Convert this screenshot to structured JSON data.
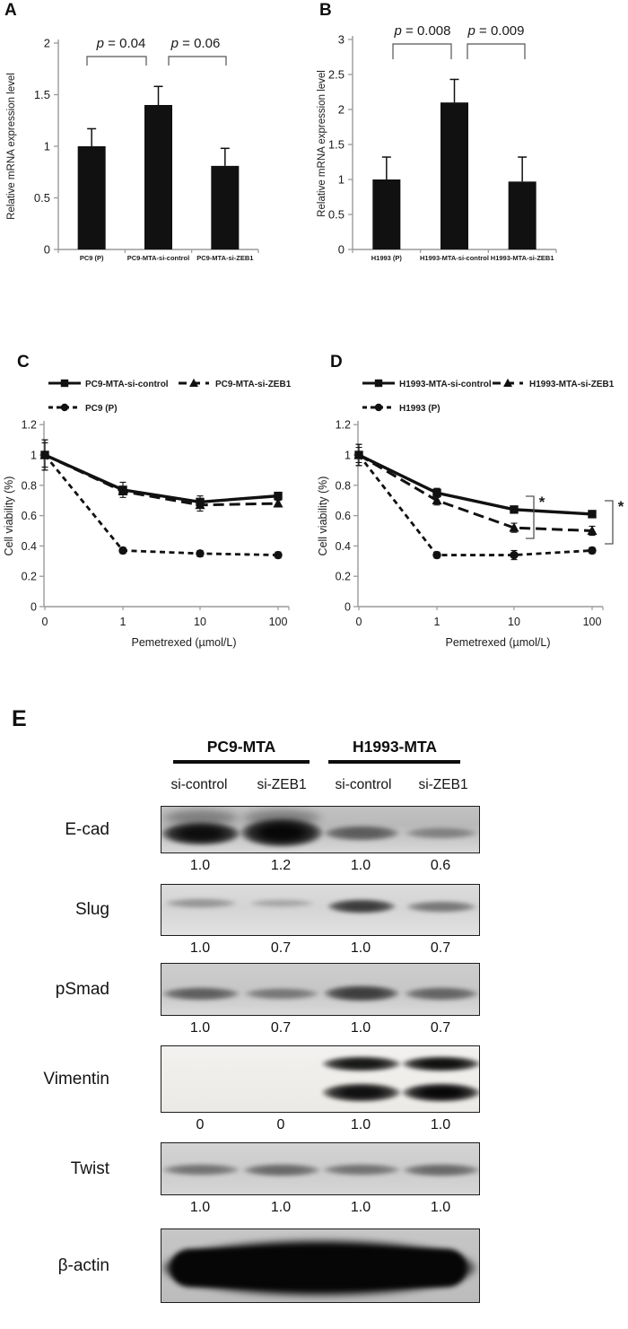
{
  "figure": {
    "background": "#ffffff",
    "text_color": "#1a1a1a",
    "axis_color": "#9a9a9a",
    "panel_letters": {
      "a": "A",
      "b": "B",
      "c": "C",
      "d": "D",
      "e": "E"
    }
  },
  "chart_data": [
    {
      "id": "A",
      "type": "bar",
      "ylabel": "Relative mRNA expression level",
      "ylim": [
        0,
        2
      ],
      "yticks": [
        "0",
        "0.5",
        "1",
        "1.5",
        "2"
      ],
      "categories": [
        "PC9 (P)",
        "PC9-MTA-si-control",
        "PC9-MTA-si-ZEB1"
      ],
      "values": [
        1.0,
        1.4,
        0.81
      ],
      "errors": [
        0.17,
        0.18,
        0.17
      ],
      "bar_color": "#111111",
      "grid": false,
      "significance": [
        {
          "from": 0,
          "to": 1,
          "label": "p = 0.04"
        },
        {
          "from": 1,
          "to": 2,
          "label": "p = 0.06"
        }
      ]
    },
    {
      "id": "B",
      "type": "bar",
      "ylabel": "Relative mRNA expression level",
      "ylim": [
        0,
        3
      ],
      "yticks": [
        "0",
        "0.5",
        "1",
        "1.5",
        "2",
        "2.5",
        "3"
      ],
      "categories": [
        "H1993 (P)",
        "H1993-MTA-si-control",
        "H1993-MTA-si-ZEB1"
      ],
      "values": [
        1.0,
        2.1,
        0.97
      ],
      "errors": [
        0.32,
        0.33,
        0.35
      ],
      "bar_color": "#111111",
      "grid": false,
      "significance": [
        {
          "from": 0,
          "to": 1,
          "label": "p = 0.008"
        },
        {
          "from": 1,
          "to": 2,
          "label": "p = 0.009"
        }
      ]
    },
    {
      "id": "C",
      "type": "line",
      "xlabel": "Pemetrexed (µmol/L)",
      "ylabel": "Cell viability (%)",
      "ylim": [
        0,
        1.2
      ],
      "yticks": [
        "0",
        "0.2",
        "0.4",
        "0.6",
        "0.8",
        "1",
        "1.2"
      ],
      "x_categories": [
        "0",
        "1",
        "10",
        "100"
      ],
      "grid": false,
      "legend_position": "top",
      "series": [
        {
          "name": "PC9-MTA-si-control",
          "marker": "square",
          "line_style": "solid",
          "values": [
            1.0,
            0.77,
            0.69,
            0.73
          ],
          "errors": [
            0.1,
            0.05,
            0.04,
            0.02
          ]
        },
        {
          "name": "PC9-MTA-si-ZEB1",
          "marker": "triangle",
          "line_style": "long-dash",
          "values": [
            1.0,
            0.76,
            0.67,
            0.68
          ],
          "errors": [
            0.08,
            0.02,
            0.04,
            0.02
          ]
        },
        {
          "name": "PC9 (P)",
          "marker": "circle",
          "line_style": "short-dash",
          "values": [
            1.0,
            0.37,
            0.35,
            0.34
          ],
          "errors": [
            0.1,
            0.02,
            0.02,
            0.02
          ]
        }
      ],
      "significance": []
    },
    {
      "id": "D",
      "type": "line",
      "xlabel": "Pemetrexed (µmol/L)",
      "ylabel": "Cell viability (%)",
      "ylim": [
        0,
        1.2
      ],
      "yticks": [
        "0",
        "0.2",
        "0.4",
        "0.6",
        "0.8",
        "1",
        "1.2"
      ],
      "x_categories": [
        "0",
        "1",
        "10",
        "100"
      ],
      "grid": false,
      "legend_position": "top",
      "series": [
        {
          "name": "H1993-MTA-si-control",
          "marker": "square",
          "line_style": "solid",
          "values": [
            1.0,
            0.75,
            0.64,
            0.61
          ],
          "errors": [
            0.07,
            0.03,
            0.02,
            0.02
          ]
        },
        {
          "name": "H1993-MTA-si-ZEB1",
          "marker": "triangle",
          "line_style": "long-dash",
          "values": [
            1.0,
            0.7,
            0.52,
            0.5
          ],
          "errors": [
            0.05,
            0.03,
            0.03,
            0.03
          ]
        },
        {
          "name": "H1993 (P)",
          "marker": "circle",
          "line_style": "short-dash",
          "values": [
            1.0,
            0.34,
            0.34,
            0.37
          ],
          "errors": [
            0.07,
            0.02,
            0.03,
            0.02
          ]
        }
      ],
      "significance": [
        {
          "x_index": 2,
          "label": "*"
        },
        {
          "x_index": 3,
          "label": "*"
        }
      ]
    }
  ],
  "western_blot": {
    "groups": [
      "PC9-MTA",
      "H1993-MTA"
    ],
    "lanes": [
      "si-control",
      "si-ZEB1",
      "si-control",
      "si-ZEB1"
    ],
    "rows": [
      {
        "protein": "E-cad",
        "values": [
          "1.0",
          "1.2",
          "1.0",
          "0.6"
        ],
        "bands": [
          [
            0.97
          ],
          [
            1.0
          ],
          [
            0.55
          ],
          [
            0.35
          ]
        ]
      },
      {
        "protein": "Slug",
        "values": [
          "1.0",
          "0.7",
          "1.0",
          "0.7"
        ],
        "bands": [
          [
            0.3
          ],
          [
            0.22
          ],
          [
            0.75
          ],
          [
            0.45
          ]
        ]
      },
      {
        "protein": "pSmad",
        "values": [
          "1.0",
          "0.7",
          "1.0",
          "0.7"
        ],
        "bands": [
          [
            0.55
          ],
          [
            0.42
          ],
          [
            0.72
          ],
          [
            0.52
          ]
        ]
      },
      {
        "protein": "Vimentin",
        "values": [
          "0",
          "0",
          "1.0",
          "1.0"
        ],
        "bands": [
          [],
          [],
          [
            0.93,
            0.96
          ],
          [
            0.96,
            1.0
          ]
        ]
      },
      {
        "protein": "Twist",
        "values": [
          "1.0",
          "1.0",
          "1.0",
          "1.0"
        ],
        "bands": [
          [
            0.45
          ],
          [
            0.5
          ],
          [
            0.45
          ],
          [
            0.5
          ]
        ]
      },
      {
        "protein": "β-actin",
        "values": [],
        "bands": [
          [
            1.0
          ],
          [
            1.0
          ],
          [
            1.0
          ],
          [
            1.0
          ]
        ],
        "merged": true
      }
    ]
  }
}
